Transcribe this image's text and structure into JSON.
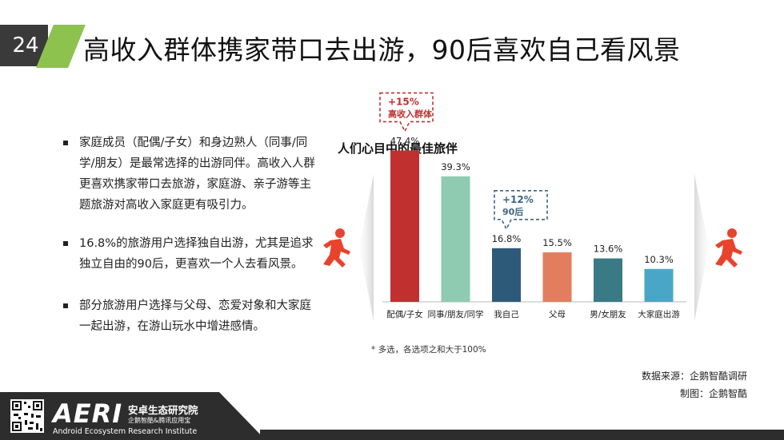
{
  "header": {
    "page_number": "24",
    "title": "高收入群体携家带口去出游，90后喜欢自己看风景"
  },
  "bullets": [
    "家庭成员（配偶/子女）和身边熟人（同事/同学/朋友）是最常选择的出游同伴。高收入人群更喜欢携家带口去旅游，家庭游、亲子游等主题旅游对高收入家庭更有吸引力。",
    "16.8%的旅游用户选择独自出游，尤其是追求独立自由的90后，更喜欢一个人去看风景。",
    "部分旅游用户选择与父母、恋爱对象和大家庭一起出游，在游山玩水中增进感情。"
  ],
  "chart_data": {
    "type": "bar",
    "title": "人们心目中的最佳旅伴",
    "categories": [
      "配偶/子女",
      "同事/朋友/同学",
      "我自己",
      "父母",
      "男/女朋友",
      "大家庭出游"
    ],
    "values": [
      47.4,
      39.3,
      16.8,
      15.5,
      13.6,
      10.3
    ],
    "value_labels": [
      "47.4%",
      "39.3%",
      "16.8%",
      "15.5%",
      "13.6%",
      "10.3%"
    ],
    "colors": [
      "#c0302f",
      "#8ecbb0",
      "#2e5a7a",
      "#e27e5e",
      "#3a7a84",
      "#4aa6c6"
    ],
    "annotations": [
      {
        "category": "配偶/子女",
        "line1": "+15%",
        "line2": "高收入群体",
        "color": "#c0302f"
      },
      {
        "category": "我自己",
        "line1": "+12%",
        "line2": "90后",
        "color": "#3c6482"
      }
    ],
    "ylim": [
      0,
      50
    ],
    "footnote": "*   多选，各选项之和大于100%"
  },
  "source": "数据来源：企鹅智酷调研",
  "credit": "制图：企鹅智酷",
  "footer": {
    "logo_text": "AERI",
    "org_name_cn": "安卓生态研究院",
    "org_sub_cn": "企鹅智酷&腾讯应用宝",
    "org_name_en": "Android Ecosystem Research Institute"
  },
  "colors": {
    "accent_green": "#8ec24f",
    "dark": "#2d2d2d",
    "runner_red": "#e8432d"
  },
  "icons": [
    "runner-icon",
    "qr-code-icon"
  ]
}
